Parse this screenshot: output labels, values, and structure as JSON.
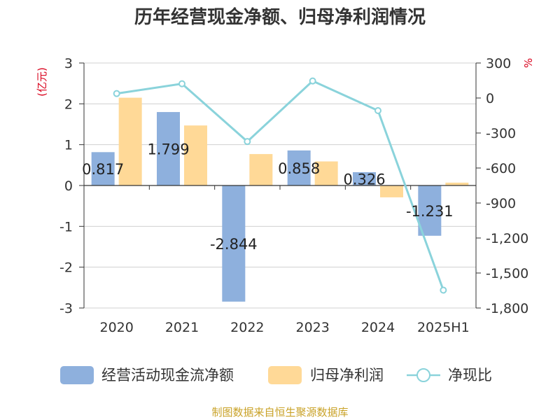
{
  "colors": {
    "cash_flow": "#8eb0dd",
    "net_profit": "#ffd997",
    "ratio_line": "#8ad3db",
    "grid": "#d0d0d0",
    "axis": "#333333",
    "unit_red": "#d9001b",
    "source_gold": "#c9a227"
  },
  "legend": {
    "position": "bottom",
    "items": [
      "经营活动现金流净额",
      "归母净利润",
      "净现比"
    ]
  },
  "source_text": "制图数据来自恒生聚源数据库",
  "chart_data": {
    "type": "bar",
    "title": "历年经营现金净额、归母净利润情况",
    "categories": [
      "2020",
      "2021",
      "2022",
      "2023",
      "2024",
      "2025H1"
    ],
    "ylabel": "(亿元)",
    "ylabel_right": "%",
    "ylim": [
      -3,
      3
    ],
    "y_ticks": [
      3,
      2,
      1,
      0,
      -1,
      -2,
      -3
    ],
    "y2lim": [
      -1800,
      300
    ],
    "y2_ticks": [
      300,
      0,
      -300,
      -600,
      -900,
      -1200,
      -1500,
      -1800
    ],
    "y2_tick_labels": [
      "300",
      "0",
      "-300",
      "-600",
      "-900",
      "-1,200",
      "-1,500",
      "-1,800"
    ],
    "grid": true,
    "series": [
      {
        "name": "经营活动现金流净额",
        "type": "bar",
        "axis": "left",
        "values": [
          0.817,
          1.799,
          -2.844,
          0.858,
          0.326,
          -1.231
        ],
        "labels": [
          "0.817",
          "1.799",
          "-2.844",
          "0.858",
          "0.326",
          "-1.231"
        ]
      },
      {
        "name": "归母净利润",
        "type": "bar",
        "axis": "left",
        "values": [
          2.15,
          1.47,
          0.77,
          0.59,
          -0.29,
          0.07
        ]
      },
      {
        "name": "净现比",
        "type": "line",
        "axis": "right",
        "values": [
          38,
          122,
          -373,
          146,
          -108,
          -1647
        ]
      }
    ]
  }
}
